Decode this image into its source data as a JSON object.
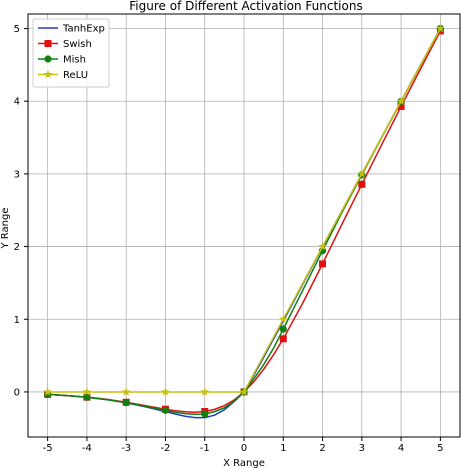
{
  "chart_data": {
    "type": "line",
    "title": "Figure of Different Activation Functions",
    "xlabel": "X Range",
    "ylabel": "Y Range",
    "xlim": [
      -5.5,
      5.5
    ],
    "ylim": [
      -0.62,
      5.2
    ],
    "xticks": [
      -5,
      -4,
      -3,
      -2,
      -1,
      0,
      1,
      2,
      3,
      4,
      5
    ],
    "yticks": [
      0,
      1,
      2,
      3,
      4,
      5
    ],
    "grid": true,
    "legend_position": "top-left",
    "series": [
      {
        "name": "TanhExp",
        "color": "#1f3fbf",
        "marker": "none",
        "x": [
          -5,
          -4.5,
          -4,
          -3.5,
          -3,
          -2.5,
          -2,
          -1.75,
          -1.5,
          -1.25,
          -1,
          -0.75,
          -0.5,
          -0.25,
          0,
          0.25,
          0.5,
          0.75,
          1,
          1.5,
          2,
          2.5,
          3,
          3.5,
          4,
          4.5,
          5
        ],
        "y": [
          -0.034,
          -0.05,
          -0.073,
          -0.106,
          -0.149,
          -0.206,
          -0.271,
          -0.303,
          -0.334,
          -0.354,
          -0.353,
          -0.32,
          -0.245,
          -0.132,
          0,
          0.232,
          0.476,
          0.726,
          0.976,
          1.486,
          1.994,
          2.499,
          3.0,
          3.5,
          4.0,
          4.5,
          5.0
        ]
      },
      {
        "name": "Swish",
        "color": "#e01010",
        "marker": "square",
        "x": [
          -5,
          -4.5,
          -4,
          -3.5,
          -3,
          -2.5,
          -2,
          -1.75,
          -1.5,
          -1.25,
          -1,
          -0.75,
          -0.5,
          -0.25,
          0,
          0.25,
          0.5,
          0.75,
          1,
          1.5,
          2,
          2.5,
          3,
          3.5,
          4,
          4.5,
          5
        ],
        "y": [
          -0.033,
          -0.05,
          -0.072,
          -0.101,
          -0.142,
          -0.19,
          -0.238,
          -0.258,
          -0.273,
          -0.279,
          -0.269,
          -0.24,
          -0.189,
          -0.11,
          0,
          0.14,
          0.311,
          0.509,
          0.731,
          1.227,
          1.762,
          2.315,
          2.857,
          3.395,
          3.928,
          4.45,
          4.967
        ],
        "marker_x": [
          -5,
          -4,
          -3,
          -2,
          -1,
          0,
          1,
          2,
          3,
          4,
          5
        ]
      },
      {
        "name": "Mish",
        "color": "#108010",
        "marker": "circle",
        "x": [
          -5,
          -4.5,
          -4,
          -3.5,
          -3,
          -2.5,
          -2,
          -1.75,
          -1.5,
          -1.25,
          -1,
          -0.75,
          -0.5,
          -0.25,
          0,
          0.25,
          0.5,
          0.75,
          1,
          1.5,
          2,
          2.5,
          3,
          3.5,
          4,
          4.5,
          5
        ],
        "y": [
          -0.034,
          -0.05,
          -0.073,
          -0.106,
          -0.146,
          -0.199,
          -0.253,
          -0.279,
          -0.298,
          -0.307,
          -0.303,
          -0.271,
          -0.218,
          -0.131,
          0,
          0.181,
          0.375,
          0.6,
          0.865,
          1.403,
          1.944,
          2.477,
          2.987,
          3.494,
          3.997,
          4.499,
          5.0
        ],
        "marker_x": [
          -5,
          -4,
          -3,
          -2,
          -1,
          0,
          1,
          2,
          3,
          4,
          5
        ]
      },
      {
        "name": "ReLU",
        "color": "#c8c010",
        "marker": "star",
        "x": [
          -5,
          -4,
          -3,
          -2,
          -1,
          0,
          1,
          2,
          3,
          4,
          5
        ],
        "y": [
          0,
          0,
          0,
          0,
          0,
          0,
          1,
          2,
          3,
          4,
          5
        ],
        "marker_x": [
          -5,
          -4,
          -3,
          -2,
          -1,
          0,
          1,
          2,
          3,
          4,
          5
        ]
      }
    ]
  }
}
